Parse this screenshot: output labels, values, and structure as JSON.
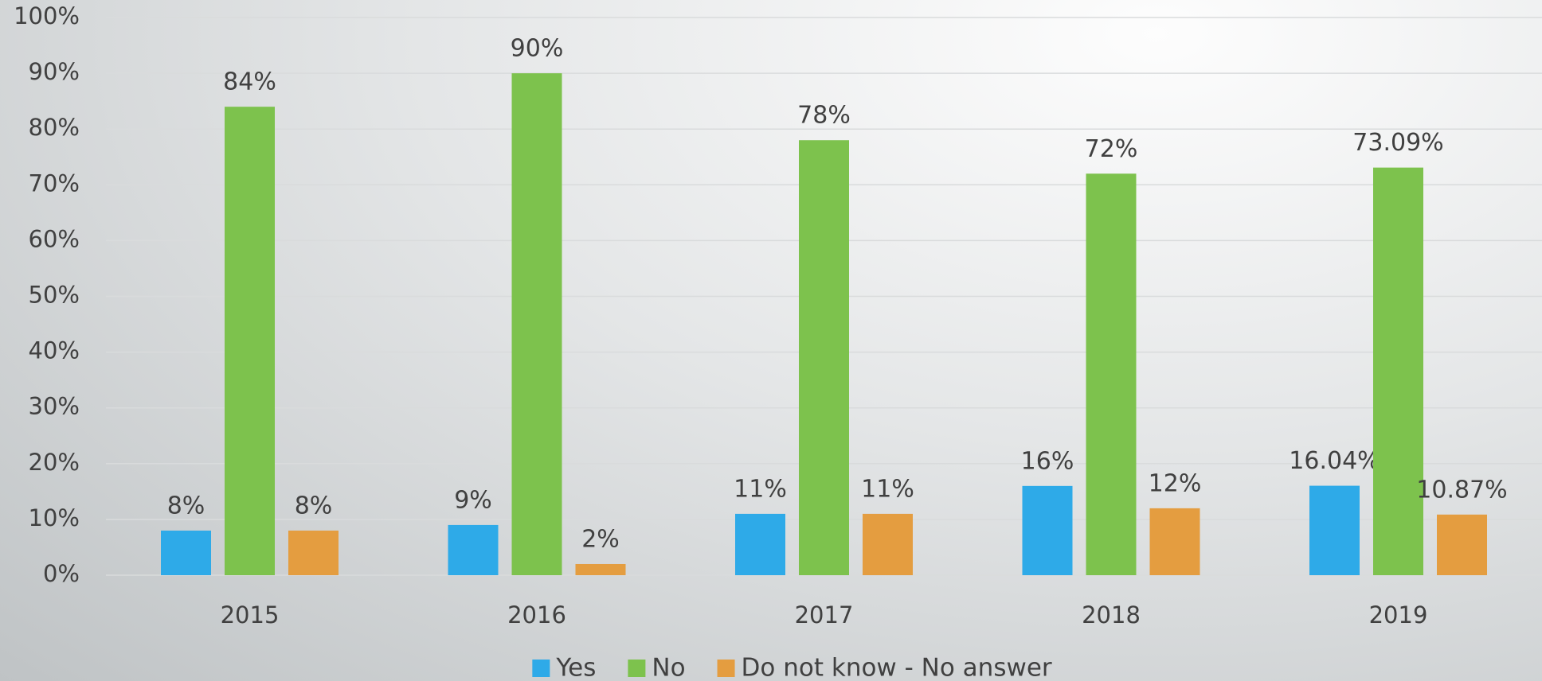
{
  "chart_data": {
    "type": "bar",
    "categories": [
      "2015",
      "2016",
      "2017",
      "2018",
      "2019"
    ],
    "series": [
      {
        "name": "Yes",
        "color": "#2eaae8",
        "values": [
          8,
          9,
          11,
          16,
          16.04
        ],
        "value_labels": [
          "8%",
          "9%",
          "11%",
          "16%",
          "16.04%"
        ]
      },
      {
        "name": "No",
        "color": "#7dc24d",
        "values": [
          84,
          90,
          78,
          72,
          73.09
        ],
        "value_labels": [
          "84%",
          "90%",
          "78%",
          "72%",
          "73.09%"
        ]
      },
      {
        "name": "Do not know - No answer",
        "color": "#e49d40",
        "values": [
          8,
          2,
          11,
          12,
          10.87
        ],
        "value_labels": [
          "8%",
          "2%",
          "11%",
          "12%",
          "10.87%"
        ]
      }
    ],
    "ylim": [
      0,
      100
    ],
    "yticks": [
      {
        "value": 0,
        "label": "0%"
      },
      {
        "value": 10,
        "label": "10%"
      },
      {
        "value": 20,
        "label": "20%"
      },
      {
        "value": 30,
        "label": "30%"
      },
      {
        "value": 40,
        "label": "40%"
      },
      {
        "value": 50,
        "label": "50%"
      },
      {
        "value": 60,
        "label": "60%"
      },
      {
        "value": 70,
        "label": "70%"
      },
      {
        "value": 80,
        "label": "80%"
      },
      {
        "value": 90,
        "label": "90%"
      },
      {
        "value": 100,
        "label": "100%"
      }
    ],
    "grid": true,
    "legend": "bottom"
  }
}
